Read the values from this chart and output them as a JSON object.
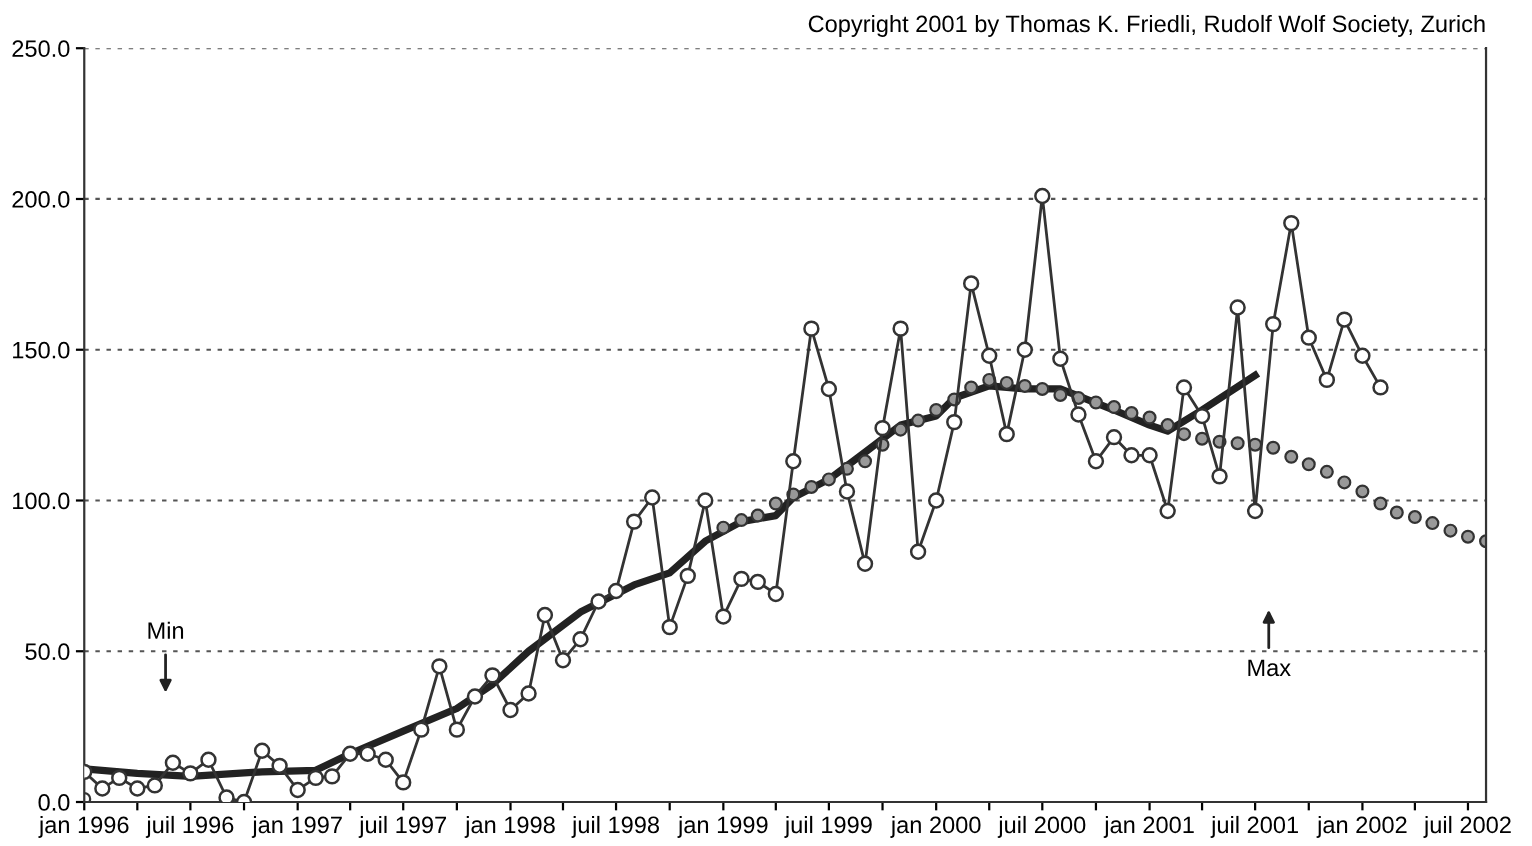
{
  "chart_data": {
    "type": "line",
    "annotations": [
      "Copyright 2001 by Thomas K. Friedli, Rudolf Wolf Society, Zurich",
      "Min",
      "Max"
    ],
    "xlim": [
      "1996-01",
      "2002-08"
    ],
    "xticks": [
      {
        "value": "1996-01",
        "label": "jan 1996"
      },
      {
        "value": "1996-04",
        "label": null
      },
      {
        "value": "1996-07",
        "label": "juil 1996"
      },
      {
        "value": "1996-10",
        "label": null
      },
      {
        "value": "1997-01",
        "label": "jan 1997"
      },
      {
        "value": "1997-04",
        "label": null
      },
      {
        "value": "1997-07",
        "label": "juil 1997"
      },
      {
        "value": "1997-10",
        "label": null
      },
      {
        "value": "1998-01",
        "label": "jan 1998"
      },
      {
        "value": "1998-04",
        "label": null
      },
      {
        "value": "1998-07",
        "label": "juil 1998"
      },
      {
        "value": "1998-10",
        "label": null
      },
      {
        "value": "1999-01",
        "label": "jan 1999"
      },
      {
        "value": "1999-04",
        "label": null
      },
      {
        "value": "1999-07",
        "label": "juil 1999"
      },
      {
        "value": "1999-10",
        "label": null
      },
      {
        "value": "2000-01",
        "label": "jan 2000"
      },
      {
        "value": "2000-04",
        "label": null
      },
      {
        "value": "2000-07",
        "label": "juil 2000"
      },
      {
        "value": "2000-10",
        "label": null
      },
      {
        "value": "2001-01",
        "label": "jan 2001"
      },
      {
        "value": "2001-04",
        "label": null
      },
      {
        "value": "2001-07",
        "label": "juil 2001"
      },
      {
        "value": "2001-10",
        "label": null
      },
      {
        "value": "2002-01",
        "label": "jan 2002"
      },
      {
        "value": "2002-04",
        "label": null
      },
      {
        "value": "2002-07",
        "label": "juil 2002"
      }
    ],
    "ylim": [
      0,
      250
    ],
    "yticks": [
      {
        "value": 0,
        "label": "0.0"
      },
      {
        "value": 50,
        "label": "50.0"
      },
      {
        "value": 100,
        "label": "100.0"
      },
      {
        "value": 150,
        "label": "150.0"
      },
      {
        "value": 200,
        "label": "200.0"
      },
      {
        "value": 250,
        "label": "250.0"
      }
    ],
    "grid": "y",
    "series": [
      {
        "marker": "circle",
        "color": "#333333",
        "x": [
          "1996-01",
          "1996-02",
          "1996-03",
          "1996-04",
          "1996-05",
          "1996-06",
          "1996-07",
          "1996-08",
          "1996-09",
          "1996-10",
          "1996-11",
          "1996-12",
          "1997-01",
          "1997-02",
          "1997-03",
          "1997-04",
          "1997-05",
          "1997-06",
          "1997-07",
          "1997-08",
          "1997-09",
          "1997-10",
          "1997-11",
          "1997-12",
          "1998-01",
          "1998-02",
          "1998-03",
          "1998-04",
          "1998-05",
          "1998-06",
          "1998-07",
          "1998-08",
          "1998-09",
          "1998-10",
          "1998-11",
          "1998-12",
          "1999-01",
          "1999-02",
          "1999-03",
          "1999-04",
          "1999-05",
          "1999-06",
          "1999-07",
          "1999-08",
          "1999-09",
          "1999-10",
          "1999-11",
          "1999-12",
          "2000-01",
          "2000-02",
          "2000-03",
          "2000-04",
          "2000-05",
          "2000-06",
          "2000-07",
          "2000-08",
          "2000-09",
          "2000-10",
          "2000-11",
          "2000-12",
          "2001-01",
          "2001-02",
          "2001-03",
          "2001-04",
          "2001-05",
          "2001-06",
          "2001-07",
          "2001-08",
          "2001-09",
          "2001-10",
          "2001-11",
          "2001-12",
          "2002-01",
          "2002-02"
        ],
        "values": [
          10,
          4.5,
          8,
          4.5,
          5.5,
          13,
          9.5,
          14,
          1.5,
          0,
          17,
          12,
          4,
          8,
          8.5,
          16,
          16,
          14,
          6.5,
          24,
          45,
          24,
          35,
          42,
          30.5,
          36,
          62,
          47,
          54,
          66.5,
          70,
          93,
          101,
          58,
          75,
          100,
          61.5,
          74,
          73,
          69,
          113,
          157,
          137,
          103,
          79,
          124,
          157,
          83,
          100,
          126,
          172,
          148,
          122,
          150,
          201,
          147,
          128.5,
          113,
          121,
          115,
          115,
          96.5,
          137.5,
          128,
          108,
          164,
          96.5,
          158.5,
          192,
          154,
          140,
          160,
          148,
          137.5
        ]
      },
      {
        "type": "scatter",
        "marker": "circle",
        "color": "#333333",
        "x": [
          "1996-01"
        ],
        "values": [
          1
        ]
      },
      {
        "marker": "none",
        "color": "#222222",
        "x": [
          "1996-01",
          "1996-04",
          "1996-07",
          "1996-11",
          "1997-02",
          "1997-04",
          "1997-07",
          "1997-10",
          "1997-12",
          "1998-02",
          "1998-05",
          "1998-08",
          "1998-10",
          "1998-12",
          "1999-02",
          "1999-04",
          "1999-05",
          "1999-07",
          "1999-09",
          "1999-11",
          "2000-01",
          "2000-02",
          "2000-04",
          "2000-06",
          "2000-08",
          "2000-11",
          "2001-01",
          "2001-02",
          "2001-04",
          "2001-07"
        ],
        "values": [
          11,
          9.5,
          8.5,
          10,
          10.5,
          16,
          23.5,
          31,
          39,
          50,
          63,
          72,
          76,
          86.5,
          93,
          95,
          101,
          107,
          116,
          125,
          128,
          134,
          138,
          137,
          137,
          130,
          125,
          123,
          130,
          141.5
        ]
      },
      {
        "type": "scatter",
        "marker": "circle",
        "color": "#999999",
        "x": [
          "1999-01",
          "1999-02",
          "1999-03",
          "1999-04",
          "1999-05",
          "1999-06",
          "1999-07",
          "1999-08",
          "1999-09",
          "1999-10",
          "1999-11",
          "1999-12",
          "2000-01",
          "2000-02",
          "2000-03",
          "2000-04",
          "2000-05",
          "2000-06",
          "2000-07",
          "2000-08",
          "2000-09",
          "2000-10",
          "2000-11",
          "2000-12",
          "2001-01",
          "2001-02",
          "2001-03",
          "2001-04",
          "2001-05",
          "2001-06",
          "2001-07",
          "2001-08",
          "2001-09",
          "2001-10",
          "2001-11",
          "2001-12",
          "2002-01",
          "2002-02",
          "2002-03",
          "2002-04",
          "2002-05",
          "2002-06",
          "2002-07",
          "2002-08"
        ],
        "values": [
          91,
          93.5,
          95,
          99,
          102,
          104.5,
          107,
          110.5,
          113,
          118.5,
          123.5,
          126.5,
          130,
          133.5,
          137.5,
          140,
          139,
          138,
          137,
          135,
          134,
          132.5,
          131,
          129,
          127.5,
          125,
          122,
          120.5,
          119.5,
          119,
          118.5,
          117.5,
          114.5,
          112,
          109.5,
          106,
          103,
          99,
          96,
          94.5,
          92.5,
          90,
          88,
          86.5
        ]
      }
    ]
  }
}
